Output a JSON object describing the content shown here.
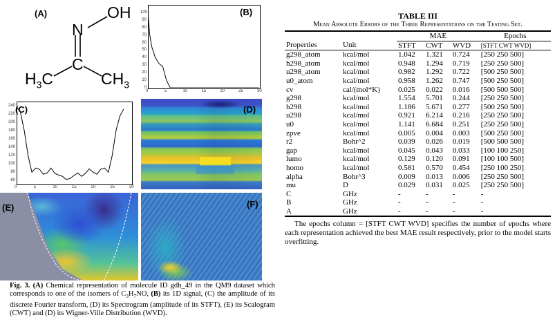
{
  "figure": {
    "labels": {
      "a": "(A)",
      "b": "(B)",
      "c": "(C)",
      "d": "(D)",
      "e": "(E)",
      "f": "(F)"
    },
    "molecule": {
      "n": "N",
      "oh": "OH",
      "h3c": "H",
      "h3c_sub": "3",
      "h3c_c": "C",
      "c": "C",
      "ch3": "CH",
      "ch3_sub": "3"
    },
    "signal_1d": {
      "y_ticks": [
        "0",
        "10",
        "20",
        "30",
        "40",
        "50",
        "60",
        "70",
        "80",
        "90",
        "100"
      ],
      "x_ticks": [
        "0",
        "5",
        "10",
        "15",
        "20",
        "25",
        "30"
      ]
    },
    "fourier": {
      "y_ticks": [
        "60",
        "80",
        "100",
        "120",
        "140",
        "160",
        "180",
        "200",
        "220",
        "240"
      ],
      "x_ticks": [
        "0",
        "5",
        "10",
        "15",
        "20",
        "25",
        "30"
      ]
    }
  },
  "chart_data": [
    {
      "type": "line",
      "panel": "B",
      "x": [
        0,
        0.5,
        1,
        2,
        3,
        4,
        5,
        6,
        8,
        10,
        15,
        20,
        25,
        30
      ],
      "y": [
        100,
        70,
        55,
        40,
        32,
        28,
        10,
        0,
        0,
        0,
        0,
        0,
        0,
        0
      ],
      "xlim": [
        0,
        30
      ],
      "ylim": [
        0,
        110
      ]
    },
    {
      "type": "line",
      "panel": "C",
      "x": [
        0,
        1,
        2,
        3,
        4,
        5,
        6,
        7,
        8,
        9,
        10,
        11,
        12,
        13,
        14,
        15,
        16,
        17,
        18,
        19,
        20,
        21,
        22,
        23,
        24,
        25,
        26,
        27,
        28
      ],
      "y": [
        237,
        225,
        180,
        120,
        80,
        90,
        87,
        75,
        78,
        90,
        77,
        73,
        70,
        62,
        65,
        72,
        78,
        70,
        77,
        88,
        80,
        75,
        87,
        90,
        80,
        120,
        180,
        215,
        232
      ],
      "xlim": [
        0,
        30
      ],
      "ylim": [
        52,
        250
      ]
    }
  ],
  "table": {
    "title": "TABLE III",
    "caption": "Mean Absolute Errors of the Three Representations on the Testing Set.",
    "group_mae": "MAE",
    "group_epochs": "Epochs",
    "headers": [
      "Properties",
      "Unit",
      "STFT",
      "CWT",
      "WVD",
      "[STFT CWT WVD]"
    ],
    "rows": [
      [
        "g298_atom",
        "kcal/mol",
        "1.042",
        "1.321",
        "0.724",
        "[250 250 500]"
      ],
      [
        "h298_atom",
        "kcal/mol",
        "0.948",
        "1.294",
        "0.719",
        "[250 250 500]"
      ],
      [
        "u298_atom",
        "kcal/mol",
        "0.982",
        "1.292",
        "0.722",
        "[500 250 500]"
      ],
      [
        "u0_atom",
        "kcal/mol",
        "0.958",
        "1.262",
        "0.747",
        "[500 250 500]"
      ],
      [
        "cv",
        "cal/(mol*K)",
        "0.025",
        "0.022",
        "0.016",
        "[500 500 500]"
      ],
      [
        "g298",
        "kcal/mol",
        "1.554",
        "5.701",
        "0.244",
        "[250 250 500]"
      ],
      [
        "h298",
        "kcal/mol",
        "1.186",
        "5.671",
        "0.277",
        "[500 250 500]"
      ],
      [
        "u298",
        "kcal/mol",
        "0.921",
        "6.214",
        "0.216",
        "[250 250 500]"
      ],
      [
        "u0",
        "kcal/mol",
        "1.141",
        "6.684",
        "0.251",
        "[250 250 500]"
      ],
      [
        "zpve",
        "kcal/mol",
        "0.005",
        "0.004",
        "0.003",
        "[500 250 500]"
      ],
      [
        "r2",
        "Bohr^2",
        "0.039",
        "0.026",
        "0.019",
        "[500 500 500]"
      ],
      [
        "gap",
        "kcal/mol",
        "0.045",
        "0.043",
        "0.033",
        "[100 100 250]"
      ],
      [
        "lumo",
        "kcal/mol",
        "0.129",
        "0.120",
        "0.091",
        "[100 100 500]"
      ],
      [
        "homo",
        "kcal/mol",
        "0.581",
        "0.570",
        "0.454",
        "[250 100 250]"
      ],
      [
        "alpha",
        "Bohr^3",
        "0.009",
        "0.013",
        "0.006",
        "[250 250 500]"
      ],
      [
        "mu",
        "D",
        "0.029",
        "0.031",
        "0.025",
        "[250 250 500]"
      ],
      [
        "C",
        "GHz",
        "-",
        "-",
        "-",
        "-"
      ],
      [
        "B",
        "GHz",
        "-",
        "-",
        "-",
        "-"
      ],
      [
        "A",
        "GHz",
        "-",
        "-",
        "-",
        "-"
      ]
    ],
    "note": "The epochs column = [STFT CWT WVD] specifies the number of epochs where each representation achieved the best MAE result respectively, prior to the model starts overfitting."
  },
  "caption": {
    "fig_label": "Fig. 3.",
    "a_label": "(A)",
    "part1": " Chemical representation of molecule ID gdb_49 in the QM9 dataset which corresponds to one of the isomers of C",
    "sub3": "3",
    "mid_h": "H",
    "sub7": "7",
    "part2": "NO, ",
    "b_label": "(B)",
    "part3": " its 1D signal, (C) the amplitude of its discrete Fourier transform, (D) its Spectrogram (amplitude of its STFT), (E) its Scalogram (CWT) and (D) its Wigner-Ville Distribution (WVD)."
  }
}
